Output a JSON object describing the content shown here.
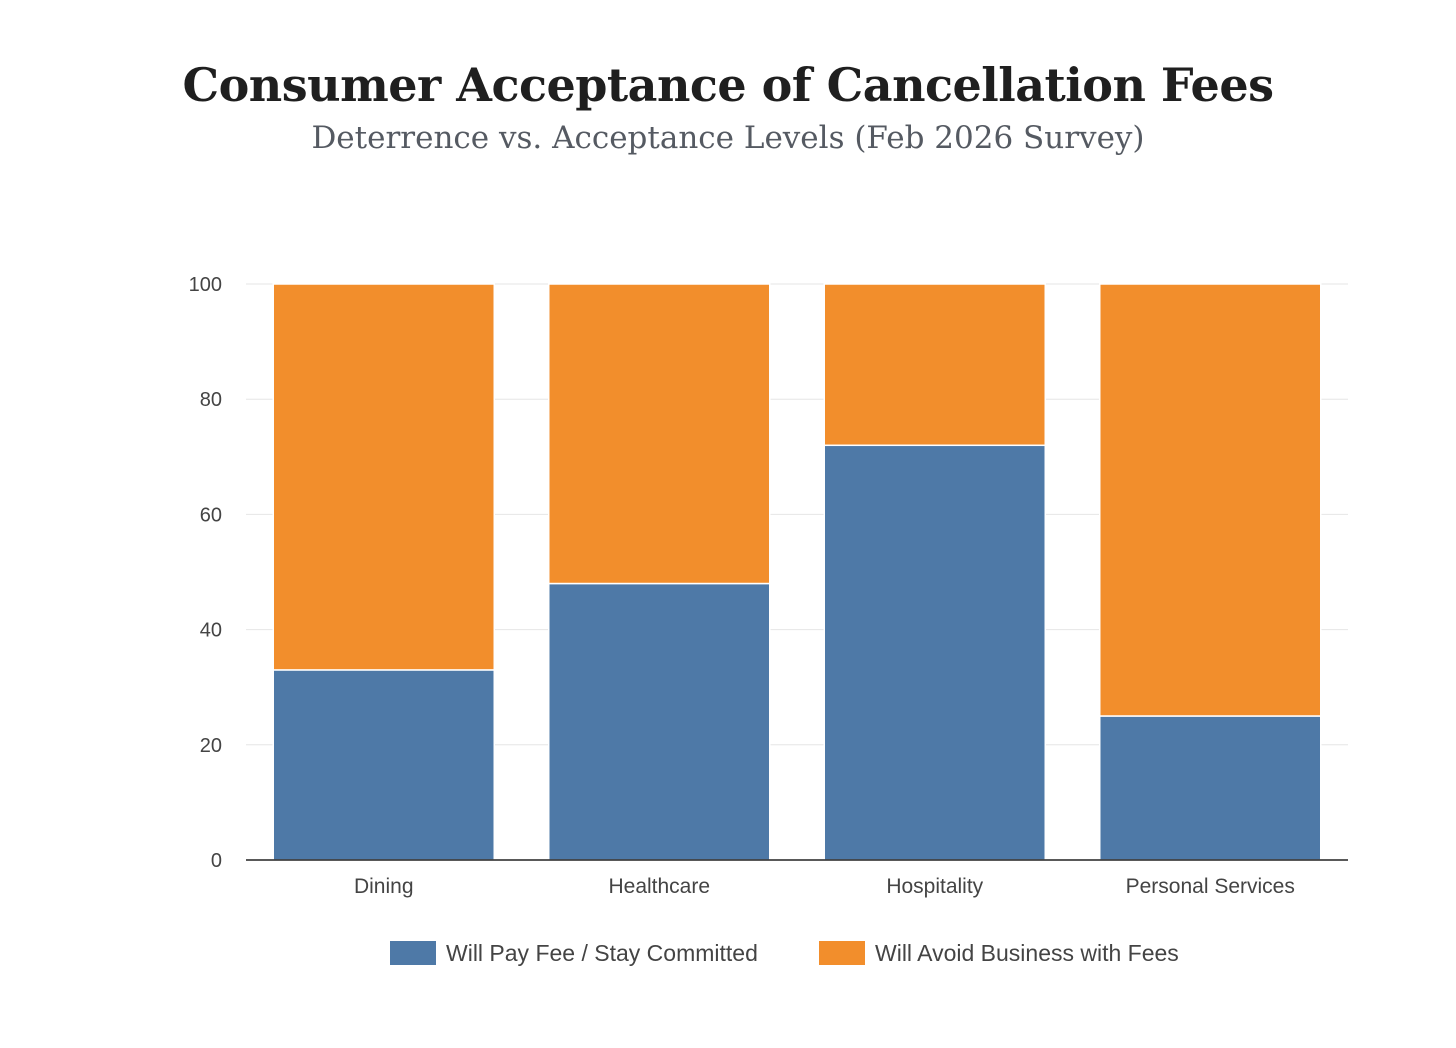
{
  "title": "Consumer Acceptance of Cancellation Fees",
  "subtitle": "Deterrence vs. Acceptance Levels (Feb 2026 Survey)",
  "chart_data": {
    "type": "bar",
    "stacked": true,
    "title": "Consumer Acceptance of Cancellation Fees",
    "subtitle": "Deterrence vs. Acceptance Levels (Feb 2026 Survey)",
    "categories": [
      "Dining",
      "Healthcare",
      "Hospitality",
      "Personal Services"
    ],
    "series": [
      {
        "name": "Will Pay Fee / Stay Committed",
        "values": [
          33,
          48,
          72,
          25
        ],
        "color": "#4e79a7"
      },
      {
        "name": "Will Avoid Business with Fees",
        "values": [
          67,
          52,
          28,
          75
        ],
        "color": "#f28e2c"
      }
    ],
    "ylim": [
      0,
      100
    ],
    "yticks": [
      0,
      20,
      40,
      60,
      80,
      100
    ],
    "grid": true,
    "legend": "bottom",
    "xlabel": "",
    "ylabel": ""
  }
}
